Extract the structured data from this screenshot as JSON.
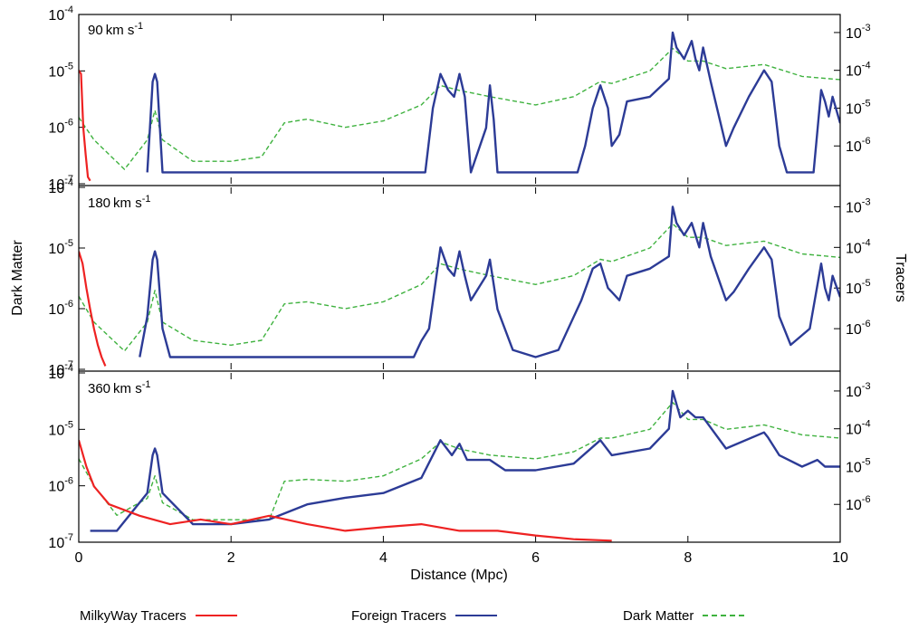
{
  "chart_data": {
    "type": "line",
    "figure": {
      "ylabel_left": "Dark Matter",
      "ylabel_right": "Tracers",
      "xlabel": "Distance (Mpc)",
      "x_ticks": [
        "0",
        "2",
        "4",
        "6",
        "8",
        "10"
      ],
      "xlim": [
        0,
        10
      ],
      "legend": [
        {
          "label": "MilkyWay Tracers",
          "color": "#ee2222",
          "style": "solid"
        },
        {
          "label": "Foreign Tracers",
          "color": "#2c3b96",
          "style": "solid"
        },
        {
          "label": "Dark Matter",
          "color": "#3fb23f",
          "style": "dashed"
        }
      ]
    },
    "left_axis": {
      "scale": "log",
      "ylim": [
        1e-07,
        0.0001
      ],
      "tick_labels": [
        {
          "base": "10",
          "exp": "-7"
        },
        {
          "base": "10",
          "exp": "-6"
        },
        {
          "base": "10",
          "exp": "-5"
        },
        {
          "base": "10",
          "exp": "-4"
        }
      ]
    },
    "right_axis": {
      "scale": "log",
      "ylim": [
        1e-07,
        0.003
      ],
      "tick_labels": [
        {
          "base": "10",
          "exp": "-6"
        },
        {
          "base": "10",
          "exp": "-5"
        },
        {
          "base": "10",
          "exp": "-4"
        },
        {
          "base": "10",
          "exp": "-3"
        }
      ]
    },
    "panels": [
      {
        "label_value": "90",
        "label_unit": "km s",
        "label_exp": "-1",
        "series": [
          {
            "name": "Dark Matter",
            "axis": "left",
            "x": [
              0.0,
              0.2,
              0.6,
              0.9,
              1.0,
              1.1,
              1.5,
              2.0,
              2.4,
              2.7,
              3.0,
              3.5,
              4.0,
              4.5,
              4.75,
              5.0,
              5.4,
              6.0,
              6.5,
              6.85,
              7.0,
              7.5,
              7.8,
              8.0,
              8.2,
              8.5,
              9.0,
              9.5,
              10.0
            ],
            "y": [
              1.5e-06,
              6e-07,
              1.8e-07,
              6e-07,
              2e-06,
              6e-07,
              2.5e-07,
              2.5e-07,
              3e-07,
              1.2e-06,
              1.4e-06,
              1e-06,
              1.3e-06,
              2.5e-06,
              5.5e-06,
              4.5e-06,
              3.5e-06,
              2.5e-06,
              3.5e-06,
              6.5e-06,
              6e-06,
              1e-05,
              2.5e-05,
              1.5e-05,
              1.5e-05,
              1.1e-05,
              1.3e-05,
              8e-06,
              7e-06
            ]
          },
          {
            "name": "Foreign Tracers",
            "axis": "right",
            "x": [
              0.9,
              0.97,
              1.0,
              1.03,
              1.1,
              4.55,
              4.65,
              4.75,
              4.85,
              4.93,
              5.0,
              5.07,
              5.15,
              5.35,
              5.4,
              5.45,
              5.5,
              6.55,
              6.65,
              6.75,
              6.85,
              6.95,
              7.0,
              7.1,
              7.2,
              7.5,
              7.75,
              7.8,
              7.85,
              7.95,
              8.05,
              8.1,
              8.15,
              8.2,
              8.3,
              8.5,
              8.6,
              8.8,
              9.0,
              9.1,
              9.2,
              9.3,
              9.65,
              9.75,
              9.8,
              9.85,
              9.9,
              10.0
            ],
            "y": [
              2e-07,
              5e-05,
              8e-05,
              5e-05,
              2e-07,
              2e-07,
              1e-05,
              8e-05,
              3e-05,
              2e-05,
              8e-05,
              2e-05,
              2e-07,
              3e-06,
              4e-05,
              5e-06,
              2e-07,
              2e-07,
              1e-06,
              1e-05,
              4e-05,
              1e-05,
              1e-06,
              2e-06,
              1.5e-05,
              2e-05,
              6e-05,
              0.001,
              0.0004,
              0.0002,
              0.0006,
              0.0002,
              0.0001,
              0.0004,
              5e-05,
              1e-06,
              3e-06,
              2e-05,
              0.0001,
              5e-05,
              1e-06,
              2e-07,
              2e-07,
              3e-05,
              1.5e-05,
              6e-06,
              2e-05,
              4e-06
            ]
          },
          {
            "name": "MilkyWay Tracers",
            "axis": "right",
            "x": [
              0.0,
              0.03,
              0.06,
              0.09,
              0.12,
              0.15
            ],
            "y": [
              0.0001,
              8e-05,
              3e-06,
              6e-07,
              1.5e-07,
              1.2e-07
            ]
          }
        ]
      },
      {
        "label_value": "180",
        "label_unit": "km s",
        "label_exp": "-1",
        "series": [
          {
            "name": "Dark Matter",
            "axis": "left",
            "x": [
              0.0,
              0.2,
              0.6,
              0.9,
              1.0,
              1.1,
              1.5,
              2.0,
              2.4,
              2.7,
              3.0,
              3.5,
              4.0,
              4.5,
              4.75,
              5.0,
              5.4,
              6.0,
              6.5,
              6.85,
              7.0,
              7.5,
              7.8,
              8.0,
              8.2,
              8.5,
              9.0,
              9.5,
              10.0
            ],
            "y": [
              1.6e-06,
              6e-07,
              2e-07,
              6e-07,
              2e-06,
              6e-07,
              3e-07,
              2.5e-07,
              3e-07,
              1.2e-06,
              1.3e-06,
              1e-06,
              1.3e-06,
              2.5e-06,
              5.5e-06,
              4.5e-06,
              3.5e-06,
              2.5e-06,
              3.5e-06,
              6.5e-06,
              6e-06,
              1e-05,
              2.5e-05,
              1.5e-05,
              1.5e-05,
              1.1e-05,
              1.3e-05,
              8e-06,
              7e-06
            ]
          },
          {
            "name": "Foreign Tracers",
            "axis": "right",
            "x": [
              0.8,
              0.9,
              0.97,
              1.0,
              1.03,
              1.1,
              1.2,
              4.4,
              4.5,
              4.6,
              4.75,
              4.85,
              4.93,
              5.0,
              5.07,
              5.15,
              5.35,
              5.4,
              5.5,
              5.7,
              6.0,
              6.3,
              6.6,
              6.75,
              6.85,
              6.95,
              7.0,
              7.1,
              7.2,
              7.5,
              7.75,
              7.8,
              7.85,
              7.95,
              8.05,
              8.15,
              8.2,
              8.3,
              8.5,
              8.6,
              8.8,
              9.0,
              9.1,
              9.2,
              9.35,
              9.6,
              9.75,
              9.8,
              9.85,
              9.9,
              10.0
            ],
            "y": [
              2e-07,
              2e-06,
              5e-05,
              8e-05,
              5e-05,
              1e-06,
              2e-07,
              2e-07,
              5e-07,
              1e-06,
              0.0001,
              3e-05,
              2e-05,
              8e-05,
              2e-05,
              5e-06,
              2e-05,
              5e-05,
              3e-06,
              3e-07,
              2e-07,
              3e-07,
              5e-06,
              3e-05,
              4e-05,
              1e-05,
              8e-06,
              5e-06,
              2e-05,
              3e-05,
              6e-05,
              0.001,
              0.0004,
              0.0002,
              0.0004,
              0.0001,
              0.0004,
              6e-05,
              5e-06,
              8e-06,
              3e-05,
              0.0001,
              5e-05,
              2e-06,
              4e-07,
              1e-06,
              4e-05,
              1e-05,
              5e-06,
              2e-05,
              6e-06
            ]
          },
          {
            "name": "MilkyWay Tracers",
            "axis": "right",
            "x": [
              0.0,
              0.05,
              0.1,
              0.15,
              0.2,
              0.25,
              0.3,
              0.35
            ],
            "y": [
              8e-05,
              4e-05,
              1e-05,
              3e-06,
              1e-06,
              4e-07,
              2e-07,
              1.2e-07
            ]
          }
        ]
      },
      {
        "label_value": "360",
        "label_unit": "km s",
        "label_exp": "-1",
        "series": [
          {
            "name": "Dark Matter",
            "axis": "left",
            "x": [
              0.0,
              0.2,
              0.5,
              0.9,
              1.0,
              1.1,
              1.5,
              2.0,
              2.5,
              2.7,
              3.0,
              3.5,
              4.0,
              4.5,
              4.75,
              5.0,
              5.4,
              6.0,
              6.5,
              6.85,
              7.0,
              7.5,
              7.8,
              8.0,
              8.2,
              8.5,
              9.0,
              9.5,
              10.0
            ],
            "y": [
              3e-06,
              1e-06,
              3e-07,
              6e-07,
              1.5e-06,
              5e-07,
              2.5e-07,
              2.5e-07,
              2.5e-07,
              1.2e-06,
              1.3e-06,
              1.2e-06,
              1.5e-06,
              3e-06,
              6e-06,
              4.5e-06,
              3.5e-06,
              3e-06,
              4e-06,
              7e-06,
              7e-06,
              1e-05,
              3e-05,
              1.5e-05,
              1.5e-05,
              1e-05,
              1.2e-05,
              8e-06,
              7e-06
            ]
          },
          {
            "name": "Foreign Tracers",
            "axis": "right",
            "x": [
              0.15,
              0.5,
              0.9,
              0.97,
              1.0,
              1.03,
              1.1,
              1.5,
              2.0,
              2.5,
              3.0,
              3.5,
              4.0,
              4.5,
              4.75,
              4.9,
              5.0,
              5.1,
              5.4,
              5.6,
              6.0,
              6.5,
              6.85,
              7.0,
              7.5,
              7.75,
              7.8,
              7.9,
              8.0,
              8.1,
              8.2,
              8.5,
              9.0,
              9.05,
              9.2,
              9.5,
              9.7,
              9.8,
              10.0
            ],
            "y": [
              2e-07,
              2e-07,
              2e-06,
              2e-05,
              3e-05,
              2e-05,
              2e-06,
              3e-07,
              3e-07,
              4e-07,
              1e-06,
              1.5e-06,
              2e-06,
              5e-06,
              5e-05,
              2e-05,
              4e-05,
              1.5e-05,
              1.5e-05,
              8e-06,
              8e-06,
              1.2e-05,
              5e-05,
              2e-05,
              3e-05,
              0.0001,
              0.001,
              0.0002,
              0.0003,
              0.0002,
              0.0002,
              3e-05,
              8e-05,
              6e-05,
              2e-05,
              1e-05,
              1.5e-05,
              1e-05,
              1e-05
            ]
          },
          {
            "name": "MilkyWay Tracers",
            "axis": "right",
            "x": [
              0.0,
              0.1,
              0.2,
              0.4,
              0.8,
              1.2,
              1.6,
              2.0,
              2.5,
              3.0,
              3.5,
              4.0,
              4.5,
              5.0,
              5.5,
              6.0,
              6.5,
              7.0
            ],
            "y": [
              5e-05,
              1e-05,
              3e-06,
              1e-06,
              5e-07,
              3e-07,
              4e-07,
              3e-07,
              5e-07,
              3e-07,
              2e-07,
              2.5e-07,
              3e-07,
              2e-07,
              2e-07,
              1.5e-07,
              1.2e-07,
              1.1e-07
            ]
          }
        ]
      }
    ]
  }
}
